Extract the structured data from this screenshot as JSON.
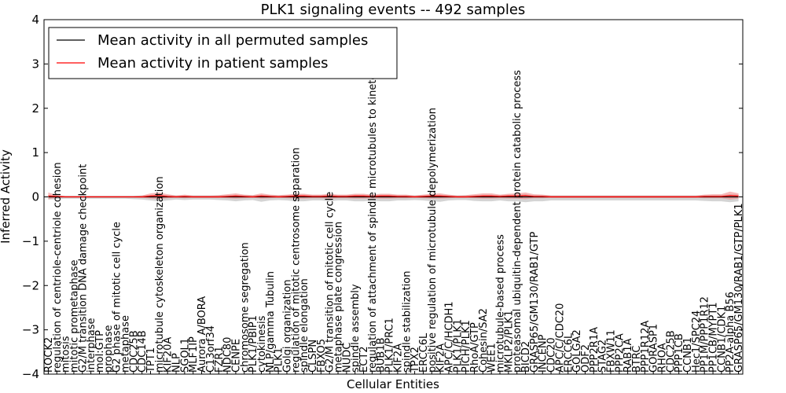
{
  "chart_data": {
    "type": "line",
    "title": "PLK1 signaling events -- 492 samples",
    "xlabel": "Cellular Entities",
    "ylabel": "Inferred Activity",
    "ylim": [
      -4,
      4
    ],
    "yticks": [
      -4,
      -3,
      -2,
      -1,
      0,
      1,
      2,
      3,
      4
    ],
    "ytick_labels": [
      "−4",
      "−3",
      "−2",
      "−1",
      "0",
      "1",
      "2",
      "3",
      "4"
    ],
    "legend_position": "top-left",
    "categories": [
      "ROCK2",
      "regulation of centriole-centriole cohesion",
      "mitosis",
      "mitotic prometaphase",
      "G2/M transition DNA damage checkpoint",
      "interphase",
      "mol:GTP",
      "prophase",
      "G2 phase of mitotic cell cycle",
      "metaphase",
      "CDC25B",
      "CDC14B",
      "TPT1",
      "microtubule cytoskeleton organization",
      "KIF20A",
      "NLP",
      "SGOL1",
      "MLF1IP",
      "Aurora A/BORA",
      "C13orf34",
      "FZR1",
      "NDC80",
      "CENPE",
      "chromosome segregation",
      "PLK1/PBIP1",
      "cytokinesis",
      "NLP/gamma Tubulin",
      "PLK1",
      "Golgi organization",
      "regulation of mitotic centrosome separation",
      "spindle elongation",
      "CLSPN",
      "FBXO5",
      "G2/M transition of mitotic cell cycle",
      "metaphase plate congression",
      "NUDC",
      "spindle assembly",
      "ECT2",
      "regulation of attachment of spindle microtubules to kinetochore",
      "BUB1B",
      "PLK1/PRC1",
      "KIF2A",
      "spindle stabilization",
      "TPX2",
      "ERCC6L",
      "positive regulation of microtubule depolymerization",
      "KIF2A",
      "APC/C/HCDH1",
      "PLK1/PLK1",
      "PICH/PLK1",
      "RhoA/GTP",
      "Cohesin/SA2",
      "WEE1",
      "microtubule-based process",
      "MKLP2/PLK1",
      "proteasomal ubiquitin-dependent protein catabolic process",
      "BICD2",
      "GRASP65/GM130/RAB1/GTP",
      "INCENP",
      "CDC20",
      "APC/C/CDC20",
      "ERCC6L",
      "GOLGA2",
      "ODF2",
      "PPP2R1A",
      "STAG2",
      "FBXW11",
      "PPP2CA",
      "RAB1A",
      "BTRC",
      "PPP1R12A",
      "GORASP1",
      "RHOA",
      "CDC25B",
      "PPP1CB",
      "CCNB1",
      "Hec1/SPC24",
      "PP1M/PPP1R12",
      "PP1CB/MYPT1",
      "CCNB1/CDK1",
      "PP2A-alpha B56",
      "GRASP65/GM130/RAB1/GTP/PLK1"
    ],
    "tall_indices": [
      1,
      4,
      13,
      23,
      29,
      33,
      38,
      45,
      55
    ],
    "series": [
      {
        "name": "Mean activity in all permuted samples",
        "color": "#000000",
        "values": [
          0,
          0,
          0,
          0,
          0,
          0,
          0,
          0,
          0,
          0,
          0,
          0,
          0,
          0,
          0,
          0,
          0,
          0,
          0,
          0,
          0,
          0,
          0,
          0,
          0,
          0,
          0,
          0,
          0,
          0,
          0,
          0,
          0,
          0,
          0,
          0,
          0,
          0,
          0,
          0,
          0,
          0,
          0,
          0,
          0,
          0,
          0,
          0,
          0,
          0,
          0,
          0,
          0,
          0,
          0,
          0,
          0,
          0,
          0,
          0,
          0,
          0,
          0,
          0,
          0,
          0,
          0,
          0,
          0,
          0,
          0,
          0,
          0,
          0,
          0,
          0,
          0,
          0,
          0,
          0,
          0,
          0
        ]
      },
      {
        "name": "Mean activity in patient samples",
        "color": "#ff0000",
        "values": [
          0.02,
          0.01,
          0.0,
          0.0,
          0.0,
          0.0,
          0.0,
          0.0,
          0.0,
          0.0,
          0.0,
          0.0,
          0.02,
          0.03,
          0.01,
          0.0,
          0.01,
          0.0,
          0.0,
          0.0,
          0.0,
          0.01,
          0.02,
          0.01,
          0.0,
          0.02,
          0.01,
          0.0,
          0.01,
          0.02,
          0.02,
          0.01,
          0.01,
          0.02,
          0.01,
          0.01,
          0.02,
          0.02,
          0.01,
          0.02,
          0.02,
          0.01,
          0.01,
          0.0,
          0.01,
          0.02,
          0.02,
          0.01,
          0.0,
          0.0,
          0.01,
          0.02,
          0.02,
          0.01,
          0.02,
          0.02,
          0.03,
          0.01,
          0.01,
          0.0,
          0.0,
          0.0,
          0.0,
          0.0,
          0.0,
          0.0,
          0.0,
          0.0,
          0.0,
          0.0,
          0.0,
          0.0,
          0.0,
          0.0,
          0.0,
          0.0,
          0.0,
          0.01,
          0.01,
          0.01,
          0.03,
          0.02
        ]
      }
    ],
    "band_permuted": {
      "color": "#b0b0b0",
      "upper": [
        0.03,
        0.03,
        0.02,
        0.02,
        0.02,
        0.02,
        0.02,
        0.02,
        0.02,
        0.02,
        0.02,
        0.03,
        0.04,
        0.05,
        0.04,
        0.03,
        0.03,
        0.03,
        0.03,
        0.03,
        0.03,
        0.04,
        0.05,
        0.04,
        0.03,
        0.05,
        0.04,
        0.03,
        0.04,
        0.05,
        0.05,
        0.04,
        0.04,
        0.05,
        0.04,
        0.04,
        0.05,
        0.05,
        0.04,
        0.05,
        0.05,
        0.04,
        0.04,
        0.03,
        0.04,
        0.05,
        0.05,
        0.04,
        0.03,
        0.03,
        0.04,
        0.05,
        0.05,
        0.04,
        0.05,
        0.05,
        0.06,
        0.04,
        0.04,
        0.03,
        0.03,
        0.03,
        0.03,
        0.03,
        0.03,
        0.03,
        0.03,
        0.03,
        0.03,
        0.03,
        0.03,
        0.03,
        0.03,
        0.03,
        0.03,
        0.03,
        0.03,
        0.04,
        0.04,
        0.04,
        0.06,
        0.05
      ],
      "lower": [
        -0.06,
        -0.05,
        -0.04,
        -0.04,
        -0.04,
        -0.04,
        -0.04,
        -0.04,
        -0.04,
        -0.04,
        -0.05,
        -0.06,
        -0.08,
        -0.1,
        -0.08,
        -0.06,
        -0.07,
        -0.06,
        -0.06,
        -0.06,
        -0.07,
        -0.08,
        -0.1,
        -0.08,
        -0.07,
        -0.11,
        -0.08,
        -0.07,
        -0.08,
        -0.1,
        -0.1,
        -0.08,
        -0.08,
        -0.1,
        -0.08,
        -0.08,
        -0.1,
        -0.1,
        -0.08,
        -0.1,
        -0.1,
        -0.08,
        -0.08,
        -0.07,
        -0.08,
        -0.1,
        -0.11,
        -0.08,
        -0.07,
        -0.07,
        -0.09,
        -0.1,
        -0.1,
        -0.08,
        -0.1,
        -0.1,
        -0.12,
        -0.1,
        -0.1,
        -0.08,
        -0.08,
        -0.08,
        -0.08,
        -0.08,
        -0.08,
        -0.08,
        -0.08,
        -0.08,
        -0.08,
        -0.08,
        -0.08,
        -0.08,
        -0.08,
        -0.08,
        -0.08,
        -0.08,
        -0.08,
        -0.09,
        -0.1,
        -0.1,
        -0.12,
        -0.1
      ]
    },
    "band_patient": {
      "color": "#f08080",
      "upper": [
        0.1,
        0.04,
        0.02,
        0.02,
        0.02,
        0.02,
        0.02,
        0.02,
        0.02,
        0.02,
        0.02,
        0.03,
        0.08,
        0.1,
        0.06,
        0.03,
        0.05,
        0.03,
        0.03,
        0.03,
        0.04,
        0.06,
        0.08,
        0.05,
        0.04,
        0.08,
        0.05,
        0.04,
        0.05,
        0.07,
        0.07,
        0.05,
        0.05,
        0.07,
        0.05,
        0.05,
        0.07,
        0.07,
        0.05,
        0.07,
        0.07,
        0.05,
        0.05,
        0.03,
        0.05,
        0.07,
        0.08,
        0.05,
        0.03,
        0.04,
        0.06,
        0.08,
        0.08,
        0.05,
        0.07,
        0.08,
        0.1,
        0.06,
        0.05,
        0.03,
        0.03,
        0.03,
        0.03,
        0.03,
        0.03,
        0.03,
        0.03,
        0.03,
        0.03,
        0.03,
        0.03,
        0.03,
        0.03,
        0.03,
        0.03,
        0.03,
        0.03,
        0.05,
        0.06,
        0.06,
        0.12,
        0.08
      ],
      "lower": [
        -0.05,
        -0.02,
        -0.01,
        -0.01,
        -0.01,
        -0.01,
        -0.01,
        -0.01,
        -0.01,
        -0.01,
        -0.01,
        -0.02,
        -0.04,
        -0.05,
        -0.03,
        -0.02,
        -0.03,
        -0.02,
        -0.02,
        -0.02,
        -0.02,
        -0.03,
        -0.04,
        -0.03,
        -0.02,
        -0.04,
        -0.03,
        -0.02,
        -0.03,
        -0.04,
        -0.04,
        -0.03,
        -0.03,
        -0.04,
        -0.03,
        -0.03,
        -0.04,
        -0.04,
        -0.03,
        -0.04,
        -0.04,
        -0.03,
        -0.03,
        -0.02,
        -0.03,
        -0.04,
        -0.04,
        -0.03,
        -0.02,
        -0.02,
        -0.03,
        -0.04,
        -0.04,
        -0.03,
        -0.04,
        -0.04,
        -0.05,
        -0.03,
        -0.03,
        -0.02,
        -0.02,
        -0.02,
        -0.02,
        -0.02,
        -0.02,
        -0.02,
        -0.02,
        -0.02,
        -0.02,
        -0.02,
        -0.02,
        -0.02,
        -0.02,
        -0.02,
        -0.02,
        -0.02,
        -0.02,
        -0.03,
        -0.03,
        -0.03,
        -0.06,
        -0.04
      ]
    }
  }
}
